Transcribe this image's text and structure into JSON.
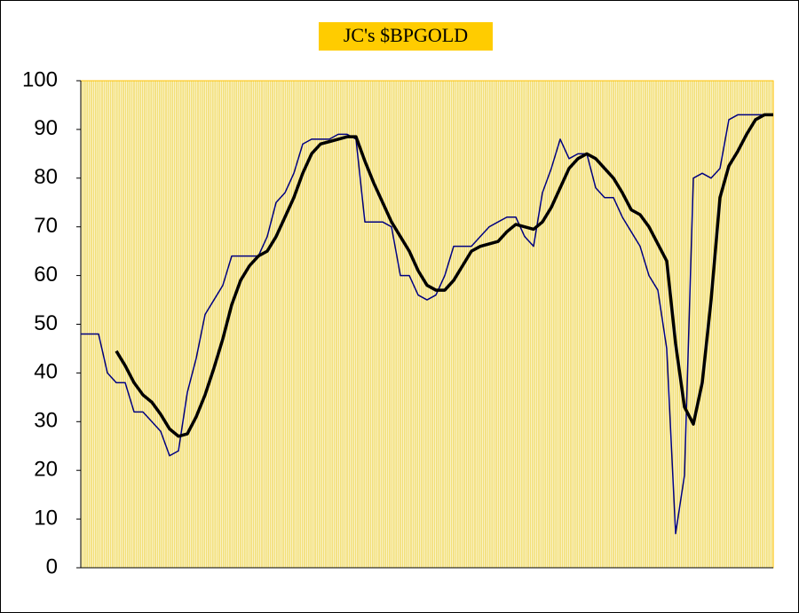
{
  "chart_data": {
    "type": "line",
    "title": "JC's $BPGOLD",
    "categories": [
      null,
      null,
      null,
      null,
      null,
      null,
      null,
      null,
      null,
      null,
      null,
      null,
      null,
      null,
      null,
      null,
      null,
      null,
      null,
      null,
      null,
      null,
      null,
      null,
      null,
      null,
      null,
      null,
      null,
      null,
      null,
      null,
      null,
      null,
      null,
      null,
      null,
      null,
      null,
      null,
      null,
      null,
      null,
      null,
      null,
      null,
      null,
      null,
      null,
      null,
      null,
      null,
      null,
      null,
      null,
      null,
      null,
      null,
      null,
      null,
      null,
      null,
      null,
      null,
      null,
      null,
      null,
      null,
      null,
      null,
      null,
      null,
      null,
      null,
      null,
      null,
      null,
      null,
      null
    ],
    "series": [
      {
        "color": "#000080",
        "width": 1.5,
        "values": [
          48,
          48,
          48,
          40,
          38,
          38,
          32,
          32,
          30,
          28,
          23,
          24,
          36,
          43,
          52,
          55,
          58,
          64,
          64,
          64,
          64,
          68,
          75,
          77,
          81,
          87,
          88,
          88,
          88,
          89,
          89,
          88,
          71,
          71,
          71,
          70,
          60,
          60,
          56,
          55,
          56,
          60,
          66,
          66,
          66,
          68,
          70,
          71,
          72,
          72,
          68,
          66,
          77,
          82,
          88,
          84,
          85,
          85,
          78,
          76,
          76,
          72,
          69,
          66,
          60,
          57,
          45,
          7,
          19,
          80,
          81,
          80,
          82,
          92,
          93,
          93,
          93,
          93,
          93
        ]
      },
      {
        "color": "#000000",
        "width": 3.5,
        "values": [
          null,
          null,
          null,
          null,
          44.5,
          41.5,
          38,
          35.5,
          34,
          31.5,
          28.5,
          27,
          27.5,
          31,
          35.5,
          41,
          47,
          54,
          59,
          62,
          64,
          65,
          68,
          72,
          76,
          81,
          85,
          87,
          87.5,
          88,
          88.5,
          88.5,
          83.5,
          79,
          75,
          71,
          68,
          65,
          61,
          58,
          57,
          57,
          59,
          62,
          65,
          66,
          66.5,
          67,
          69,
          70.5,
          70,
          69.5,
          71,
          74,
          78,
          82,
          84,
          85,
          84,
          82,
          80,
          77,
          73.5,
          72.5,
          70,
          66.5,
          63,
          46,
          33,
          29.5,
          38,
          55,
          76,
          82.5,
          85.5,
          89,
          92,
          93,
          93
        ]
      }
    ],
    "ylim": [
      0,
      100
    ],
    "yticks": [
      0,
      10,
      20,
      30,
      40,
      50,
      60,
      70,
      80,
      90,
      100
    ],
    "x_grid": true,
    "plot_color": "#f2de72",
    "frame_color": "#ffc000",
    "title_box_color": "#ffcc00"
  }
}
